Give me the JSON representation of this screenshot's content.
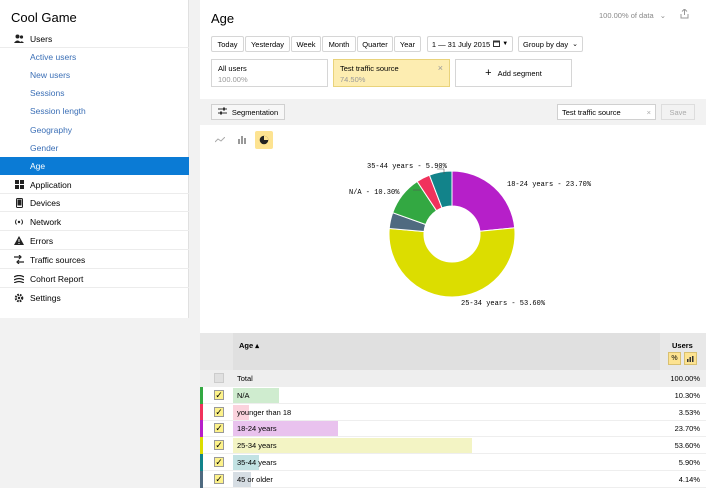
{
  "app": {
    "title": "Cool Game"
  },
  "sidebar": {
    "users": {
      "label": "Users",
      "icon": "users-icon"
    },
    "sub_items": [
      {
        "label": "Active users"
      },
      {
        "label": "New users"
      },
      {
        "label": "Sessions"
      },
      {
        "label": "Session length"
      },
      {
        "label": "Geography"
      },
      {
        "label": "Gender"
      },
      {
        "label": "Age"
      }
    ],
    "items": [
      {
        "label": "Application",
        "icon": "grid-icon"
      },
      {
        "label": "Devices",
        "icon": "phone-icon"
      },
      {
        "label": "Network",
        "icon": "wifi-icon"
      },
      {
        "label": "Errors",
        "icon": "warning-icon"
      },
      {
        "label": "Traffic sources",
        "icon": "traffic-icon"
      },
      {
        "label": "Cohort Report",
        "icon": "cohort-icon"
      },
      {
        "label": "Settings",
        "icon": "gear-icon"
      }
    ]
  },
  "header": {
    "title": "Age",
    "zoom": "100.00% of data",
    "zoom_caret": "⌄"
  },
  "period_buttons": [
    "Today",
    "Yesterday",
    "Week",
    "Month",
    "Quarter",
    "Year"
  ],
  "date_range": "1 — 31 July 2015",
  "group_by": "Group by day",
  "segments": [
    {
      "name": "All users",
      "value": "100.00%"
    },
    {
      "name": "Test traffic source",
      "value": "74.50%"
    }
  ],
  "add_segment": "Add segment",
  "segmentation": {
    "button": "Segmentation",
    "input_value": "Test traffic source",
    "save": "Save"
  },
  "chart_data": {
    "type": "pie",
    "style": "donut",
    "slices": [
      {
        "label": "18-24 years",
        "value": 23.7,
        "color": "#b61fc9"
      },
      {
        "label": "25-34 years",
        "value": 53.6,
        "color": "#dcdd00"
      },
      {
        "label": "45 or older",
        "value": 4.14,
        "color": "#4f6a80"
      },
      {
        "label": "N/A",
        "value": 10.3,
        "color": "#33a842"
      },
      {
        "label": "younger than 18",
        "value": 3.53,
        "color": "#f0325c"
      },
      {
        "label": "35-44 years",
        "value": 5.9,
        "color": "#12838a"
      }
    ],
    "callouts": [
      "18-24 years - 23.70%",
      "25-34 years - 53.60%",
      "N/A - 10.30%",
      "35-44 years - 5.90%"
    ]
  },
  "table": {
    "col_age": "Age ▴",
    "col_users": "Users",
    "total_label": "Total",
    "total_value": "100.00%",
    "rows": [
      {
        "label": "N/A",
        "value": "10.30%",
        "color": "#33a842",
        "bar_color": "#cfeccf",
        "fraction": 0.103
      },
      {
        "label": "younger than 18",
        "value": "3.53%",
        "color": "#f0325c",
        "bar_color": "#fbd3dd",
        "fraction": 0.0353
      },
      {
        "label": "18-24 years",
        "value": "23.70%",
        "color": "#b61fc9",
        "bar_color": "#e9c2ee",
        "fraction": 0.237
      },
      {
        "label": "25-34 years",
        "value": "53.60%",
        "color": "#dcdd00",
        "bar_color": "#f3f4c4",
        "fraction": 0.536
      },
      {
        "label": "35-44 years",
        "value": "5.90%",
        "color": "#12838a",
        "bar_color": "#c2e2e3",
        "fraction": 0.059
      },
      {
        "label": "45 or older",
        "value": "4.14%",
        "color": "#4f6a80",
        "bar_color": "#d6dde3",
        "fraction": 0.0414
      }
    ]
  },
  "checkmark": "✓"
}
